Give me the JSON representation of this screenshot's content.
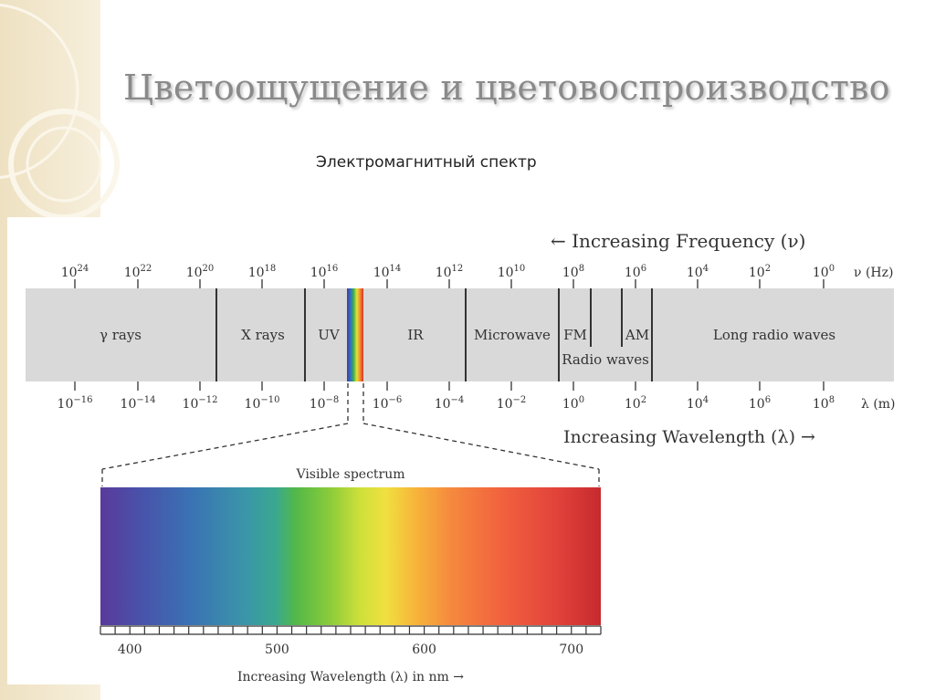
{
  "slide": {
    "title": "Цветоощущение и цветовоспроизводство",
    "subtitle": "Электромагнитный спектр"
  },
  "spectrum": {
    "frequency_arrow_label": "← Increasing Frequency (ν)",
    "frequency_unit": "ν (Hz)",
    "frequency_exponents": [
      "24",
      "22",
      "20",
      "18",
      "16",
      "14",
      "12",
      "10",
      "8",
      "6",
      "4",
      "2",
      "0"
    ],
    "wavelength_arrow_label": "Increasing Wavelength (λ) →",
    "wavelength_unit": "λ (m)",
    "wavelength_exponents": [
      "−16",
      "−14",
      "−12",
      "−10",
      "−8",
      "−6",
      "−4",
      "−2",
      "0",
      "2",
      "4",
      "6",
      "8"
    ],
    "bands": [
      {
        "id": "gamma",
        "label": "γ rays"
      },
      {
        "id": "xray",
        "label": "X rays"
      },
      {
        "id": "uv",
        "label": "UV"
      },
      {
        "id": "ir",
        "label": "IR"
      },
      {
        "id": "microwave",
        "label": "Microwave"
      },
      {
        "id": "fm",
        "label": "FM"
      },
      {
        "id": "am",
        "label": "AM"
      },
      {
        "id": "longradio",
        "label": "Long radio waves"
      }
    ],
    "radio_waves_label": "Radio waves"
  },
  "visible": {
    "title": "Visible spectrum",
    "range_nm": [
      380,
      720
    ],
    "tick_labels": [
      "400",
      "500",
      "600",
      "700"
    ],
    "tick_values": [
      400,
      500,
      600,
      700
    ],
    "axis_label": "Increasing Wavelength (λ) in nm →"
  },
  "colors": {
    "title": "#8a8a8a",
    "band_fill": "#d9d9d9",
    "sidebar": "#f2e8cf"
  }
}
